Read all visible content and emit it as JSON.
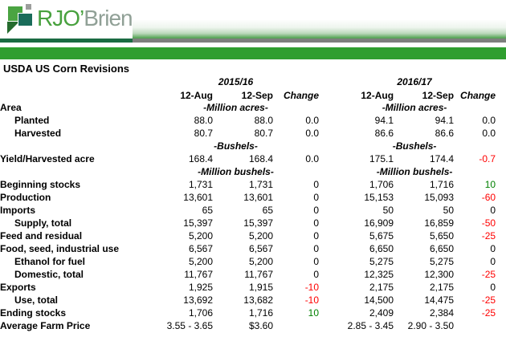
{
  "banner": {
    "brand": "RJO’Brien",
    "brand_primary": "RJO’",
    "brand_secondary": "Brien",
    "colors": {
      "brand_green": "#48a13e",
      "brand_gray": "#90a096",
      "icon_bright_green": "#4aa442",
      "icon_teal": "#1a6c5a",
      "icon_gray": "#9c9e9c",
      "icon_dark_green": "#256b2e",
      "underline_green": "#1a6b42",
      "strip_gray": "#7d7f7d",
      "bar_green": "#2f9e2f"
    }
  },
  "title": "USDA US Corn Revisions",
  "table": {
    "group_headers": [
      "2015/16",
      "2016/17"
    ],
    "column_headers": [
      "12-Aug",
      "12-Sep",
      "Change"
    ],
    "change_colors": {
      "negative": "#ff0000",
      "positive": "#008000"
    },
    "rows": [
      {
        "kind": "units",
        "label": "Area",
        "unit": "-Million acres-"
      },
      {
        "kind": "data",
        "label": "Planted",
        "indent": true,
        "cells": [
          {
            "t": "88.0"
          },
          {
            "t": "88.0"
          },
          {
            "t": "0.0"
          },
          {
            "t": "94.1"
          },
          {
            "t": "94.1"
          },
          {
            "t": "0.0"
          }
        ]
      },
      {
        "kind": "data",
        "label": "Harvested",
        "indent": true,
        "cells": [
          {
            "t": "80.7"
          },
          {
            "t": "80.7"
          },
          {
            "t": "0.0"
          },
          {
            "t": "86.6"
          },
          {
            "t": "86.6"
          },
          {
            "t": "0.0"
          }
        ]
      },
      {
        "kind": "units",
        "label": "",
        "unit": "-Bushels-"
      },
      {
        "kind": "data",
        "label": "Yield/Harvested acre",
        "indent": false,
        "cells": [
          {
            "t": "168.4"
          },
          {
            "t": "168.4"
          },
          {
            "t": "0.0"
          },
          {
            "t": "175.1"
          },
          {
            "t": "174.4"
          },
          {
            "t": "-0.7",
            "c": "neg"
          }
        ]
      },
      {
        "kind": "units",
        "label": "",
        "unit": "-Million bushels-"
      },
      {
        "kind": "data",
        "label": "Beginning stocks",
        "indent": false,
        "cells": [
          {
            "t": "1,731"
          },
          {
            "t": "1,731"
          },
          {
            "t": "0"
          },
          {
            "t": "1,706"
          },
          {
            "t": "1,716"
          },
          {
            "t": "10",
            "c": "pos"
          }
        ]
      },
      {
        "kind": "data",
        "label": "Production",
        "indent": false,
        "cells": [
          {
            "t": "13,601"
          },
          {
            "t": "13,601"
          },
          {
            "t": "0"
          },
          {
            "t": "15,153"
          },
          {
            "t": "15,093"
          },
          {
            "t": "-60",
            "c": "neg"
          }
        ]
      },
      {
        "kind": "data",
        "label": "Imports",
        "indent": false,
        "cells": [
          {
            "t": "65"
          },
          {
            "t": "65"
          },
          {
            "t": "0"
          },
          {
            "t": "50"
          },
          {
            "t": "50"
          },
          {
            "t": "0"
          }
        ]
      },
      {
        "kind": "data",
        "label": "Supply, total",
        "indent": true,
        "cells": [
          {
            "t": "15,397"
          },
          {
            "t": "15,397"
          },
          {
            "t": "0"
          },
          {
            "t": "16,909"
          },
          {
            "t": "16,859"
          },
          {
            "t": "-50",
            "c": "neg"
          }
        ]
      },
      {
        "kind": "data",
        "label": "Feed and residual",
        "indent": false,
        "cells": [
          {
            "t": "5,200"
          },
          {
            "t": "5,200"
          },
          {
            "t": "0"
          },
          {
            "t": "5,675"
          },
          {
            "t": "5,650"
          },
          {
            "t": "-25",
            "c": "neg"
          }
        ]
      },
      {
        "kind": "data",
        "label": "Food, seed, industrial use",
        "indent": false,
        "cells": [
          {
            "t": "6,567"
          },
          {
            "t": "6,567"
          },
          {
            "t": "0"
          },
          {
            "t": "6,650"
          },
          {
            "t": "6,650"
          },
          {
            "t": "0"
          }
        ]
      },
      {
        "kind": "data",
        "label": "Ethanol for fuel",
        "indent": true,
        "cells": [
          {
            "t": "5,200"
          },
          {
            "t": "5,200"
          },
          {
            "t": "0"
          },
          {
            "t": "5,275"
          },
          {
            "t": "5,275"
          },
          {
            "t": "0"
          }
        ]
      },
      {
        "kind": "data",
        "label": "Domestic, total",
        "indent": true,
        "cells": [
          {
            "t": "11,767"
          },
          {
            "t": "11,767"
          },
          {
            "t": "0"
          },
          {
            "t": "12,325"
          },
          {
            "t": "12,300"
          },
          {
            "t": "-25",
            "c": "neg"
          }
        ]
      },
      {
        "kind": "data",
        "label": "Exports",
        "indent": false,
        "cells": [
          {
            "t": "1,925"
          },
          {
            "t": "1,915"
          },
          {
            "t": "-10",
            "c": "neg"
          },
          {
            "t": "2,175"
          },
          {
            "t": "2,175"
          },
          {
            "t": "0"
          }
        ]
      },
      {
        "kind": "data",
        "label": "Use, total",
        "indent": true,
        "cells": [
          {
            "t": "13,692"
          },
          {
            "t": "13,682"
          },
          {
            "t": "-10",
            "c": "neg"
          },
          {
            "t": "14,500"
          },
          {
            "t": "14,475"
          },
          {
            "t": "-25",
            "c": "neg"
          }
        ]
      },
      {
        "kind": "data",
        "label": "Ending stocks",
        "indent": false,
        "cells": [
          {
            "t": "1,706"
          },
          {
            "t": "1,716"
          },
          {
            "t": "10",
            "c": "pos"
          },
          {
            "t": "2,409"
          },
          {
            "t": "2,384"
          },
          {
            "t": "-25",
            "c": "neg"
          }
        ]
      },
      {
        "kind": "data",
        "label": "Average Farm Price",
        "indent": false,
        "cells": [
          {
            "t": "3.55 - 3.65"
          },
          {
            "t": "$3.60"
          },
          {
            "t": ""
          },
          {
            "t": "2.85 - 3.45"
          },
          {
            "t": "2.90 - 3.50"
          },
          {
            "t": ""
          }
        ]
      }
    ]
  }
}
